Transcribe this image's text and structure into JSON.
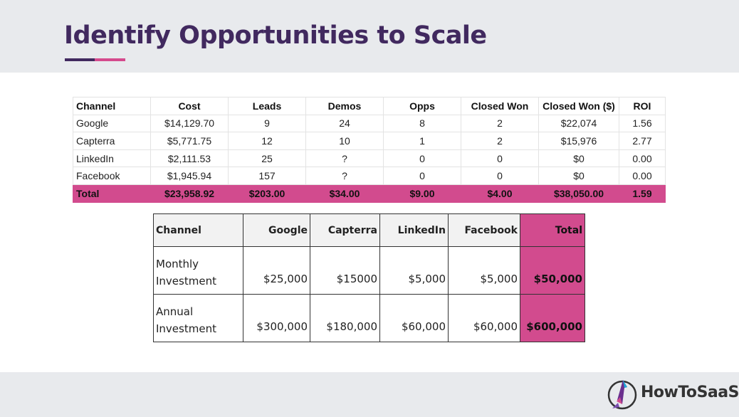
{
  "slide": {
    "title": "Identify Opportunities to Scale",
    "colors": {
      "title": "#41295f",
      "accent": "#d24b8e",
      "band": "#e8eaed"
    }
  },
  "channel_table": {
    "headers": [
      "Channel",
      "Cost",
      "Leads",
      "Demos",
      "Opps",
      "Closed Won",
      "Closed Won ($)",
      "ROI"
    ],
    "rows": [
      [
        "Google",
        "$14,129.70",
        "9",
        "24",
        "8",
        "2",
        "$22,074",
        "1.56"
      ],
      [
        "Capterra",
        "$5,771.75",
        "12",
        "10",
        "1",
        "2",
        "$15,976",
        "2.77"
      ],
      [
        "LinkedIn",
        "$2,111.53",
        "25",
        "?",
        "0",
        "0",
        "$0",
        "0.00"
      ],
      [
        "Facebook",
        "$1,945.94",
        "157",
        "?",
        "0",
        "0",
        "$0",
        "0.00"
      ]
    ],
    "total": [
      "Total",
      "$23,958.92",
      "$203.00",
      "$34.00",
      "$9.00",
      "$4.00",
      "$38,050.00",
      "1.59"
    ]
  },
  "investment_table": {
    "headers": [
      "Channel",
      "Google",
      "Capterra",
      "LinkedIn",
      "Facebook",
      "Total"
    ],
    "rows": [
      [
        "Monthly Investment",
        "$25,000",
        "$15000",
        "$5,000",
        "$5,000",
        "$50,000"
      ],
      [
        "Annual Investment",
        "$300,000",
        "$180,000",
        "$60,000",
        "$60,000",
        "$600,000"
      ]
    ]
  },
  "footer": {
    "logo_text_how": "HowTo",
    "logo_text_saas": "SaaS",
    "logo_icon": "rocket-arrow-icon"
  }
}
